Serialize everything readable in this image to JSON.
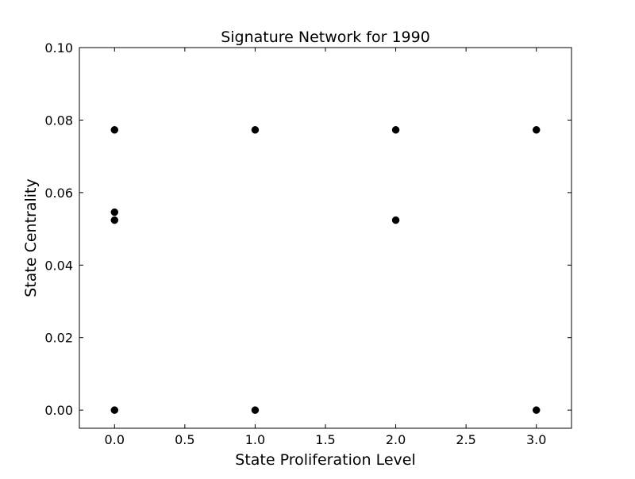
{
  "chart_data": {
    "type": "scatter",
    "title": "Signature Network for 1990",
    "xlabel": "State Proliferation Level",
    "ylabel": "State Centrality",
    "xlim": [
      -0.25,
      3.25
    ],
    "ylim": [
      -0.005,
      0.1
    ],
    "xticks": [
      0.0,
      0.5,
      1.0,
      1.5,
      2.0,
      2.5,
      3.0
    ],
    "xtick_labels": [
      "0.0",
      "0.5",
      "1.0",
      "1.5",
      "2.0",
      "2.5",
      "3.0"
    ],
    "yticks": [
      0.0,
      0.02,
      0.04,
      0.06,
      0.08,
      0.1
    ],
    "ytick_labels": [
      "0.00",
      "0.02",
      "0.04",
      "0.06",
      "0.08",
      "0.10"
    ],
    "grid": false,
    "legend": "none",
    "marker_color": "#000000",
    "points": [
      {
        "x": 0.0,
        "y": 0.0773
      },
      {
        "x": 0.0,
        "y": 0.0546
      },
      {
        "x": 0.0,
        "y": 0.0524
      },
      {
        "x": 0.0,
        "y": 0.0
      },
      {
        "x": 1.0,
        "y": 0.0773
      },
      {
        "x": 1.0,
        "y": 0.0
      },
      {
        "x": 2.0,
        "y": 0.0773
      },
      {
        "x": 2.0,
        "y": 0.0524
      },
      {
        "x": 3.0,
        "y": 0.0773
      },
      {
        "x": 3.0,
        "y": 0.0
      }
    ]
  }
}
